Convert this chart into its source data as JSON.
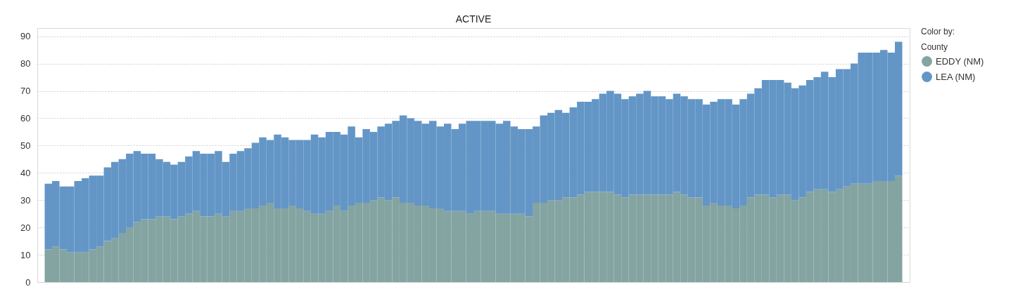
{
  "chart_data": {
    "type": "bar",
    "stacked": true,
    "title": "ACTIVE",
    "legend_title": "Color by:",
    "annotations": [
      "County"
    ],
    "categories": [
      null,
      null,
      null,
      null,
      null,
      null,
      null,
      null,
      null,
      null,
      null,
      null,
      null,
      null,
      null,
      null,
      null,
      null,
      null,
      null,
      null,
      null,
      null,
      null,
      null,
      null,
      null,
      null,
      null,
      null,
      null,
      null,
      null,
      null,
      null,
      null,
      null,
      null,
      null,
      null,
      null,
      null,
      null,
      null,
      null,
      null,
      null,
      null,
      null,
      null,
      null,
      null,
      null,
      null,
      null,
      null,
      null,
      null,
      null,
      null,
      null,
      null,
      null,
      null,
      null,
      null,
      null,
      null,
      null,
      null,
      null,
      null,
      null,
      null,
      null,
      null,
      null,
      null,
      null,
      null,
      null,
      null,
      null,
      null,
      null,
      null,
      null,
      null,
      null,
      null,
      null,
      null,
      null,
      null,
      null,
      null,
      null,
      null,
      null,
      null,
      null,
      null,
      null,
      null,
      null,
      null,
      null,
      null,
      null,
      null,
      null,
      null,
      null,
      null,
      null,
      null
    ],
    "series": [
      {
        "name": "EDDY (NM)",
        "color": "#84a4a2",
        "values": [
          12,
          13,
          12,
          11,
          11,
          11,
          12,
          13,
          15,
          16,
          18,
          20,
          22,
          23,
          23,
          24,
          24,
          23,
          24,
          25,
          26,
          24,
          24,
          25,
          24,
          26,
          26,
          27,
          27,
          28,
          29,
          27,
          27,
          28,
          27,
          26,
          25,
          25,
          26,
          28,
          26,
          28,
          29,
          29,
          30,
          31,
          30,
          31,
          29,
          29,
          28,
          28,
          27,
          27,
          26,
          26,
          26,
          25,
          26,
          26,
          26,
          25,
          25,
          25,
          25,
          24,
          29,
          29,
          30,
          30,
          31,
          31,
          32,
          33,
          33,
          33,
          33,
          32,
          31,
          32,
          32,
          32,
          32,
          32,
          32,
          33,
          32,
          31,
          31,
          28,
          29,
          28,
          28,
          27,
          28,
          31,
          32,
          32,
          31,
          32,
          32,
          30,
          31,
          33,
          34,
          34,
          33,
          34,
          35,
          36,
          36,
          36,
          37,
          37,
          37,
          39
        ]
      },
      {
        "name": "LEA (NM)",
        "color": "#6396c6",
        "values": [
          24,
          24,
          23,
          24,
          26,
          27,
          27,
          26,
          27,
          28,
          27,
          27,
          26,
          24,
          24,
          21,
          20,
          20,
          20,
          21,
          22,
          23,
          23,
          23,
          20,
          21,
          22,
          22,
          24,
          25,
          23,
          27,
          26,
          24,
          25,
          26,
          29,
          28,
          29,
          27,
          28,
          29,
          24,
          27,
          25,
          26,
          28,
          28,
          32,
          31,
          31,
          30,
          32,
          30,
          32,
          30,
          32,
          34,
          33,
          33,
          33,
          33,
          34,
          32,
          31,
          32,
          28,
          32,
          32,
          33,
          31,
          33,
          34,
          33,
          34,
          36,
          37,
          37,
          36,
          36,
          37,
          38,
          36,
          36,
          35,
          36,
          36,
          36,
          36,
          37,
          37,
          39,
          39,
          38,
          39,
          38,
          39,
          42,
          43,
          42,
          41,
          41,
          41,
          41,
          41,
          43,
          42,
          44,
          43,
          44,
          48,
          48,
          47,
          48,
          47,
          49
        ]
      }
    ],
    "ylim": [
      0,
      93
    ],
    "yticks": [
      0,
      10,
      20,
      30,
      40,
      50,
      60,
      70,
      80,
      90
    ],
    "grid": "y",
    "legend": "right",
    "tick_labels": "y"
  }
}
